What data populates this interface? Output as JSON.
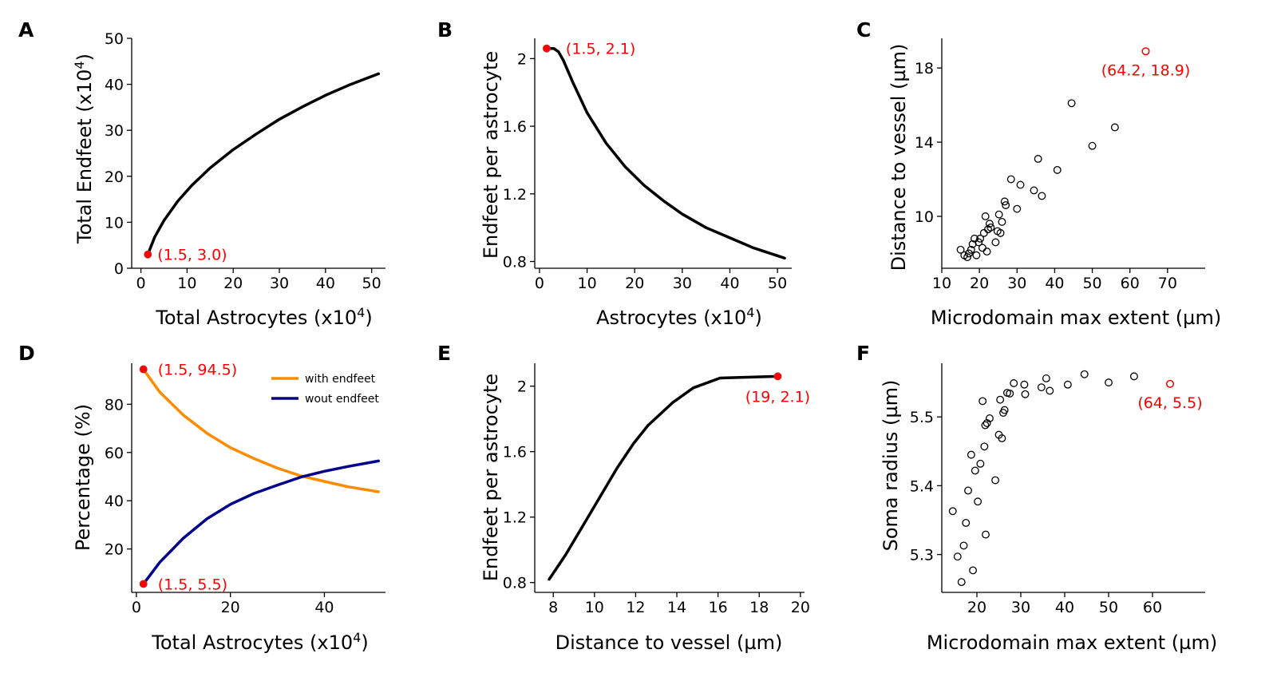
{
  "chart_data": [
    {
      "panel": "A",
      "type": "line",
      "xlabel": "Total Astrocytes (x10",
      "xlabel_sup": "4",
      "xlabel_end": ")",
      "ylabel": "Total Endfeet (x10",
      "ylabel_sup": "4",
      "ylabel_end": ")",
      "xlim": [
        -2,
        53
      ],
      "ylim": [
        0,
        50
      ],
      "xticks": [
        0,
        10,
        20,
        30,
        40,
        50
      ],
      "yticks": [
        0,
        10,
        20,
        30,
        40,
        50
      ],
      "series": [
        {
          "color": "#000000",
          "x": [
            1.5,
            3,
            5,
            8,
            11,
            15,
            20,
            25,
            30,
            35,
            40,
            45,
            51.5
          ],
          "y": [
            3.0,
            6.8,
            10.4,
            14.6,
            18.0,
            21.8,
            25.8,
            29.2,
            32.4,
            35.1,
            37.6,
            39.8,
            42.3
          ]
        }
      ],
      "highlight": {
        "x": 1.5,
        "y": 3.0,
        "label": "(1.5, 3.0)",
        "color": "#ff0000"
      }
    },
    {
      "panel": "B",
      "type": "line",
      "xlabel": "Astrocytes (x10",
      "xlabel_sup": "4",
      "xlabel_end": ")",
      "ylabel": "Endfeet per astrocyte",
      "xlim": [
        -1,
        53
      ],
      "ylim": [
        0.76,
        2.12
      ],
      "xticks": [
        0,
        10,
        20,
        30,
        40,
        50
      ],
      "yticks": [
        0.8,
        1.2,
        1.6,
        2.0
      ],
      "series": [
        {
          "color": "#000000",
          "x": [
            1.5,
            3,
            4,
            5,
            7,
            10,
            14,
            18,
            22,
            26,
            30,
            35,
            40,
            45,
            51.5
          ],
          "y": [
            2.06,
            2.06,
            2.04,
            1.99,
            1.86,
            1.68,
            1.5,
            1.36,
            1.25,
            1.16,
            1.08,
            1.0,
            0.94,
            0.88,
            0.82
          ]
        }
      ],
      "highlight": {
        "x": 1.5,
        "y": 2.06,
        "label": "(1.5, 2.1)",
        "color": "#ff0000"
      }
    },
    {
      "panel": "C",
      "type": "scatter",
      "xlabel": "Microdomain max extent (µm)",
      "ylabel": "Distance to vessel (µm)",
      "xlim": [
        10,
        80
      ],
      "ylim": [
        7.2,
        19.6
      ],
      "xticks": [
        10,
        20,
        30,
        40,
        50,
        60,
        70
      ],
      "yticks": [
        10,
        14,
        18
      ],
      "points": {
        "x": [
          15.0,
          16.0,
          16.8,
          17.2,
          17.8,
          18.2,
          18.7,
          19.2,
          19.8,
          20.2,
          20.8,
          21.2,
          21.6,
          22.0,
          22.3,
          22.7,
          23.0,
          24.3,
          24.8,
          25.2,
          25.6,
          26.0,
          26.7,
          27.0,
          28.4,
          30.0,
          30.9,
          34.5,
          35.6,
          36.6,
          40.7,
          44.5,
          50.0,
          56.0
        ],
        "y": [
          8.2,
          7.9,
          7.8,
          8.0,
          8.2,
          8.5,
          8.8,
          7.9,
          8.6,
          8.8,
          8.3,
          9.1,
          10.0,
          8.1,
          9.3,
          9.6,
          9.4,
          8.6,
          9.2,
          10.1,
          9.1,
          9.7,
          10.8,
          10.6,
          12.0,
          10.4,
          11.7,
          11.4,
          13.1,
          11.1,
          12.5,
          16.1,
          13.8,
          14.8
        ]
      },
      "highlight": {
        "x": 64.2,
        "y": 18.9,
        "label": "(64.2, 18.9)",
        "color": "#ff0000"
      }
    },
    {
      "panel": "D",
      "type": "line",
      "xlabel": "Total Astrocytes (x10",
      "xlabel_sup": "4",
      "xlabel_end": ")",
      "ylabel": "Percentage (%)",
      "xlim": [
        -1,
        53
      ],
      "ylim": [
        2,
        97
      ],
      "xticks": [
        0,
        20,
        40
      ],
      "yticks": [
        20,
        40,
        60,
        80
      ],
      "legend": {
        "position": "top-right"
      },
      "series": [
        {
          "name": "with endfeet",
          "color": "#ff8c00",
          "x": [
            1.5,
            5,
            10,
            15,
            20,
            25,
            30,
            35,
            40,
            45,
            51.5
          ],
          "y": [
            94.5,
            85.0,
            75.5,
            68.0,
            62.0,
            57.5,
            53.5,
            50.3,
            48.0,
            45.8,
            43.7
          ]
        },
        {
          "name": "wout endfeet",
          "color": "#00008b",
          "x": [
            1.5,
            5,
            10,
            15,
            20,
            25,
            30,
            35,
            40,
            45,
            51.5
          ],
          "y": [
            5.5,
            14.5,
            24.5,
            32.5,
            38.5,
            43.0,
            46.5,
            49.8,
            52.2,
            54.2,
            56.5
          ]
        }
      ],
      "highlights": [
        {
          "x": 1.5,
          "y": 94.5,
          "label": "(1.5, 94.5)",
          "color": "#ff0000"
        },
        {
          "x": 1.5,
          "y": 5.5,
          "label": "(1.5, 5.5)",
          "color": "#ff0000"
        }
      ]
    },
    {
      "panel": "E",
      "type": "line",
      "xlabel": "Distance to vessel (µm)",
      "ylabel": "Endfeet per astrocyte",
      "xlim": [
        7.1,
        20.2
      ],
      "ylim": [
        0.74,
        2.14
      ],
      "xticks": [
        8,
        10,
        12,
        14,
        16,
        18,
        20
      ],
      "yticks": [
        0.8,
        1.2,
        1.6,
        2.0
      ],
      "series": [
        {
          "color": "#000000",
          "x": [
            7.8,
            8.6,
            9.5,
            10.3,
            11.1,
            11.9,
            12.6,
            13.8,
            14.8,
            16.1,
            18.9
          ],
          "y": [
            0.82,
            0.97,
            1.16,
            1.33,
            1.5,
            1.65,
            1.76,
            1.9,
            1.99,
            2.05,
            2.06
          ]
        }
      ],
      "highlight": {
        "x": 18.9,
        "y": 2.06,
        "label": "(19, 2.1)",
        "color": "#ff0000"
      }
    },
    {
      "panel": "F",
      "type": "scatter",
      "xlabel": "Microdomain max extent (µm)",
      "ylabel": "Soma radius (µm)",
      "xlim": [
        12,
        72
      ],
      "ylim": [
        5.245,
        5.578
      ],
      "xticks": [
        20,
        30,
        40,
        50,
        60
      ],
      "yticks": [
        5.3,
        5.4,
        5.5
      ],
      "points": {
        "x": [
          14.5,
          15.6,
          16.5,
          17.0,
          17.5,
          18.0,
          18.7,
          19.1,
          19.6,
          20.2,
          20.8,
          21.3,
          21.7,
          21.9,
          22.0,
          22.3,
          22.9,
          24.2,
          25.0,
          25.3,
          25.7,
          26.0,
          26.3,
          26.9,
          27.5,
          28.4,
          30.8,
          31.0,
          34.7,
          35.8,
          36.6,
          40.7,
          44.5,
          50.0,
          55.8
        ],
        "y": [
          5.363,
          5.297,
          5.26,
          5.313,
          5.346,
          5.393,
          5.445,
          5.277,
          5.422,
          5.377,
          5.432,
          5.523,
          5.457,
          5.488,
          5.329,
          5.491,
          5.498,
          5.408,
          5.474,
          5.525,
          5.469,
          5.506,
          5.51,
          5.535,
          5.534,
          5.549,
          5.547,
          5.533,
          5.543,
          5.556,
          5.538,
          5.547,
          5.562,
          5.55,
          5.559
        ]
      },
      "highlight": {
        "x": 64,
        "y": 5.548,
        "label": "(64, 5.5)",
        "color": "#ff0000"
      }
    }
  ]
}
